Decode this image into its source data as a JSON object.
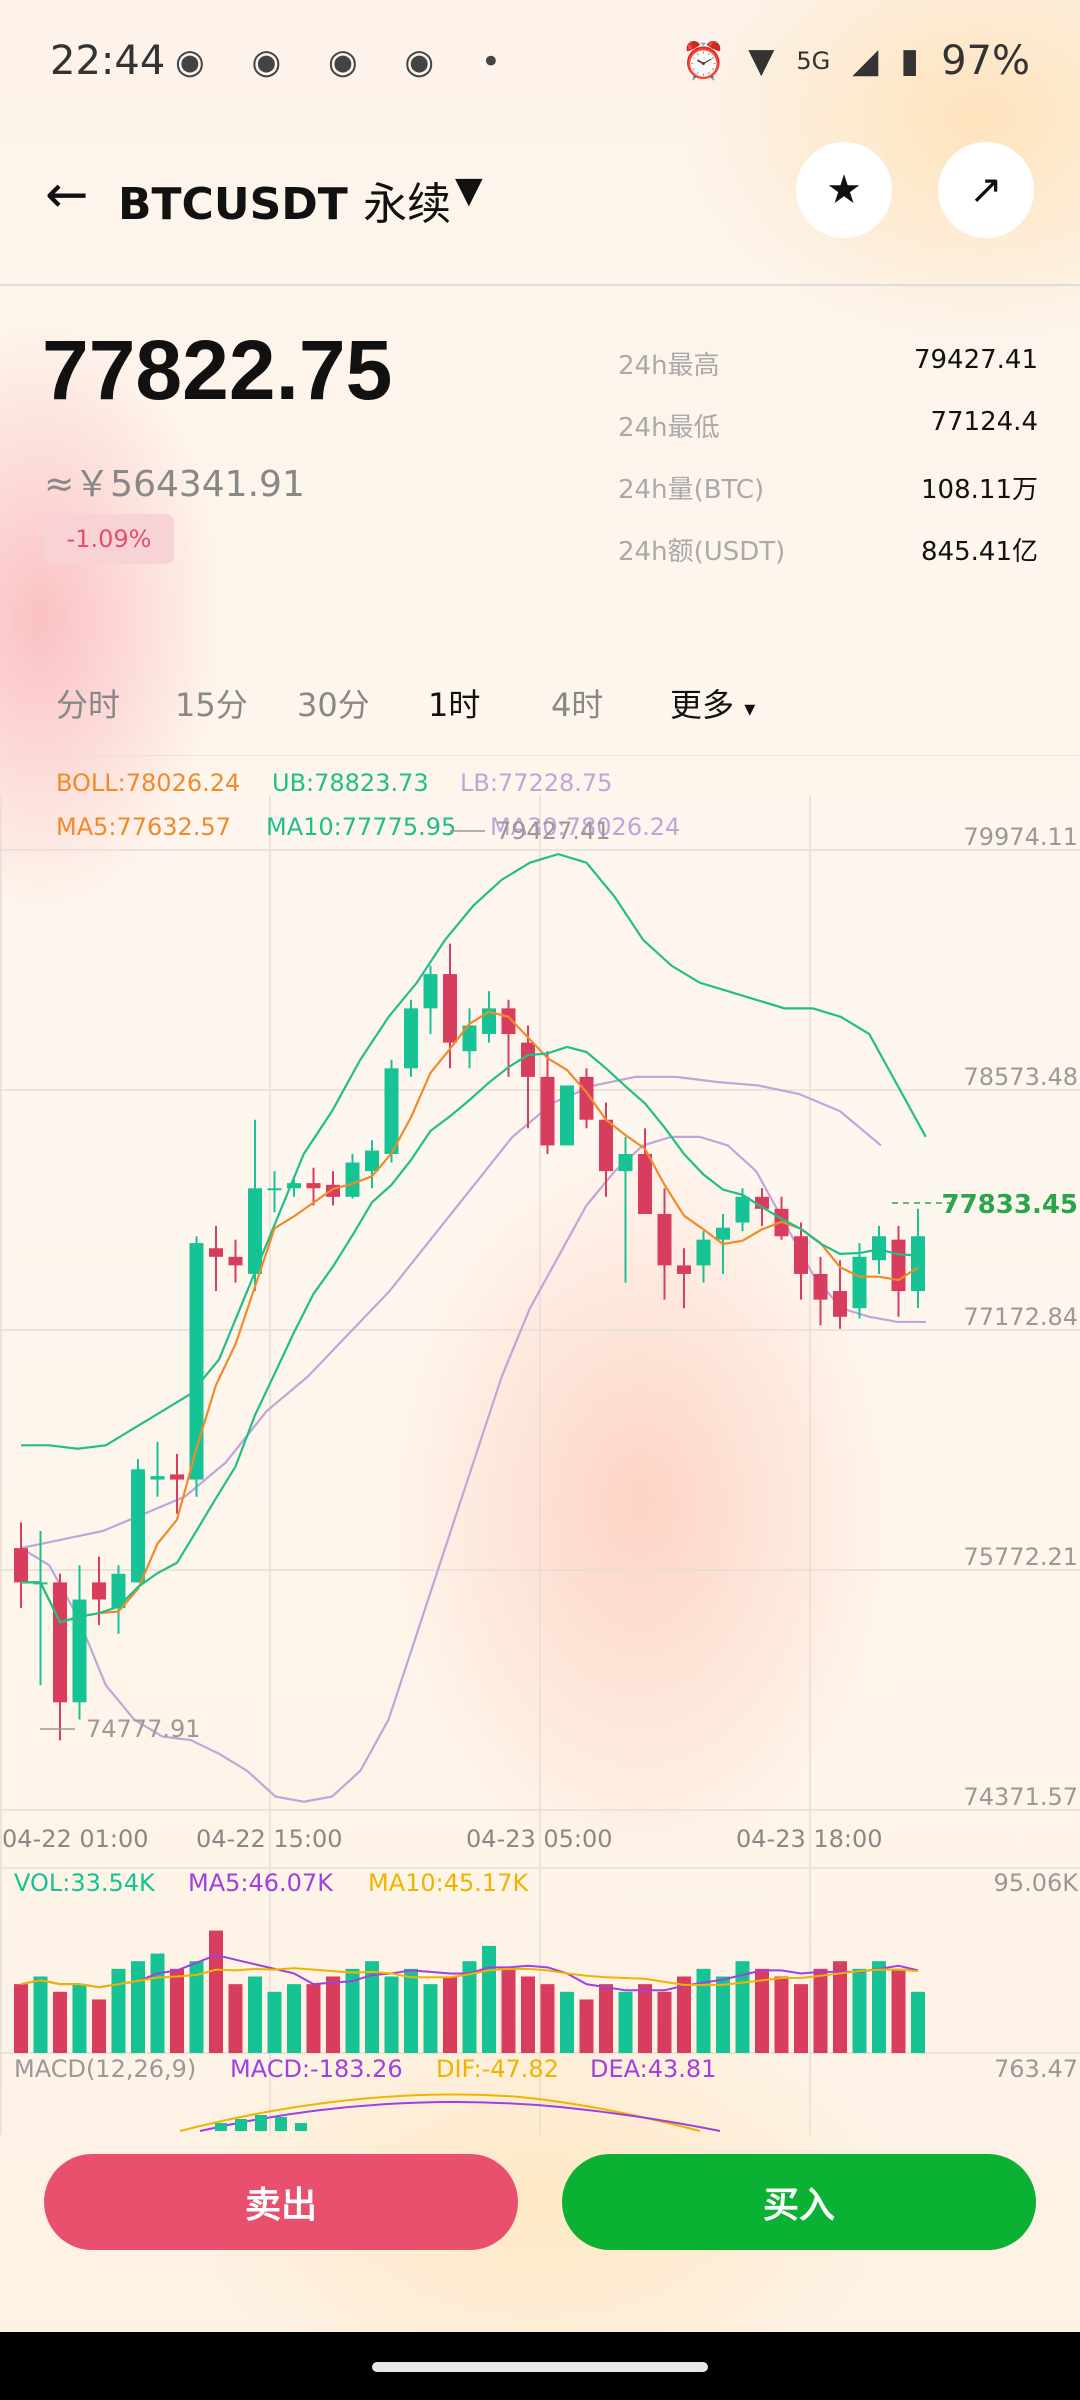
{
  "status": {
    "time": "22:44",
    "network": "5G",
    "battery": "97%",
    "notification_icons": "weibo-icon x4, dot"
  },
  "header": {
    "back": "←",
    "symbol": "BTCUSDT",
    "contract": "永续",
    "dropdown": "▼"
  },
  "ticker": {
    "price": "77822.75",
    "cny": "≈￥564341.91",
    "change": "-1.09%",
    "stats": [
      {
        "label": "24h最高",
        "value": "79427.41"
      },
      {
        "label": "24h最低",
        "value": "77124.4"
      },
      {
        "label": "24h量(BTC)",
        "value": "108.11万"
      },
      {
        "label": "24h额(USDT)",
        "value": "845.41亿"
      }
    ]
  },
  "tabs": [
    "分时",
    "15分",
    "30分",
    "1时",
    "4时",
    "更多"
  ],
  "active_tab": "1时",
  "colors": {
    "up": "#16c395",
    "down": "#d83d5e",
    "boll": "#f08a2a",
    "ub": "#1fbf8a",
    "lb": "#c0a5d8",
    "ma5": "#f08a2a",
    "ma10": "#1fbf8a",
    "ma30": "#c0a5d8",
    "vol": "#16c395",
    "vol_ma5": "#a040e0",
    "vol_ma10": "#f0b400"
  },
  "indicators": {
    "boll": "BOLL:78026.24",
    "ub": "UB:78823.73",
    "lb": "LB:77228.75",
    "ma5": "MA5:77632.57",
    "ma10": "MA10:77775.95",
    "ma30": "MA30:78026.24",
    "vol": "VOL:33.54K",
    "vol_ma5": "MA5:46.07K",
    "vol_ma10": "MA10:45.17K",
    "macd_title": "MACD(12,26,9)",
    "macd": "MACD:-183.26",
    "dif": "DIF:-47.82",
    "dea": "DEA:43.81"
  },
  "chart_data": {
    "type": "candlestick",
    "y_ticks": [
      "79974.11",
      "78573.48",
      "77172.84",
      "75772.21",
      "74371.57"
    ],
    "y_range": [
      74371.57,
      79974.11
    ],
    "x_ticks": [
      "04-22 01:00",
      "04-22 15:00",
      "04-23 05:00",
      "04-23 18:00"
    ],
    "current_price_label": "77833.45",
    "high_marker": "79427.41",
    "low_marker": "74777.91",
    "vol_max": "95.06K",
    "macd_value": "763.47",
    "candles": [
      {
        "o": 75900,
        "h": 76050,
        "l": 75550,
        "c": 75700
      },
      {
        "o": 75700,
        "h": 76000,
        "l": 75100,
        "c": 75700
      },
      {
        "o": 75700,
        "h": 75750,
        "l": 74777.91,
        "c": 75000
      },
      {
        "o": 75000,
        "h": 75800,
        "l": 74900,
        "c": 75600
      },
      {
        "o": 75700,
        "h": 75850,
        "l": 75450,
        "c": 75600
      },
      {
        "o": 75550,
        "h": 75800,
        "l": 75400,
        "c": 75750
      },
      {
        "o": 75700,
        "h": 76420,
        "l": 75700,
        "c": 76360
      },
      {
        "o": 76300,
        "h": 76520,
        "l": 76200,
        "c": 76320
      },
      {
        "o": 76330,
        "h": 76450,
        "l": 76100,
        "c": 76300
      },
      {
        "o": 76300,
        "h": 77720,
        "l": 76200,
        "c": 77680
      },
      {
        "o": 77650,
        "h": 77780,
        "l": 77400,
        "c": 77600
      },
      {
        "o": 77600,
        "h": 77700,
        "l": 77450,
        "c": 77550
      },
      {
        "o": 77500,
        "h": 78400,
        "l": 77400,
        "c": 78000
      },
      {
        "o": 78000,
        "h": 78100,
        "l": 77860,
        "c": 78000
      },
      {
        "o": 78000,
        "h": 78050,
        "l": 77950,
        "c": 78030
      },
      {
        "o": 78030,
        "h": 78120,
        "l": 77900,
        "c": 78000
      },
      {
        "o": 78020,
        "h": 78100,
        "l": 77900,
        "c": 77950
      },
      {
        "o": 77950,
        "h": 78200,
        "l": 77940,
        "c": 78150
      },
      {
        "o": 78100,
        "h": 78280,
        "l": 78000,
        "c": 78220
      },
      {
        "o": 78200,
        "h": 78750,
        "l": 78150,
        "c": 78700
      },
      {
        "o": 78700,
        "h": 79100,
        "l": 78650,
        "c": 79050
      },
      {
        "o": 79050,
        "h": 79300,
        "l": 78900,
        "c": 79250
      },
      {
        "o": 79250,
        "h": 79427.41,
        "l": 78700,
        "c": 78850
      },
      {
        "o": 78800,
        "h": 79050,
        "l": 78700,
        "c": 78950
      },
      {
        "o": 78900,
        "h": 79150,
        "l": 78850,
        "c": 79050
      },
      {
        "o": 79050,
        "h": 79100,
        "l": 78650,
        "c": 78900
      },
      {
        "o": 78850,
        "h": 78950,
        "l": 78350,
        "c": 78650
      },
      {
        "o": 78650,
        "h": 78800,
        "l": 78200,
        "c": 78250
      },
      {
        "o": 78250,
        "h": 78550,
        "l": 78250,
        "c": 78600
      },
      {
        "o": 78650,
        "h": 78700,
        "l": 78350,
        "c": 78400
      },
      {
        "o": 78400,
        "h": 78500,
        "l": 77950,
        "c": 78100
      },
      {
        "o": 78100,
        "h": 78300,
        "l": 77450,
        "c": 78200
      },
      {
        "o": 78200,
        "h": 78350,
        "l": 77850,
        "c": 77850
      },
      {
        "o": 77850,
        "h": 78000,
        "l": 77350,
        "c": 77550
      },
      {
        "o": 77550,
        "h": 77650,
        "l": 77300,
        "c": 77500
      },
      {
        "o": 77550,
        "h": 77750,
        "l": 77450,
        "c": 77700
      },
      {
        "o": 77700,
        "h": 77850,
        "l": 77500,
        "c": 77770
      },
      {
        "o": 77800,
        "h": 78000,
        "l": 77750,
        "c": 77950
      },
      {
        "o": 77950,
        "h": 78000,
        "l": 77780,
        "c": 77880
      },
      {
        "o": 77880,
        "h": 77950,
        "l": 77700,
        "c": 77720
      },
      {
        "o": 77720,
        "h": 77800,
        "l": 77350,
        "c": 77500
      },
      {
        "o": 77500,
        "h": 77600,
        "l": 77200,
        "c": 77350
      },
      {
        "o": 77400,
        "h": 77580,
        "l": 77180,
        "c": 77250
      },
      {
        "o": 77300,
        "h": 77680,
        "l": 77240,
        "c": 77600
      },
      {
        "o": 77580,
        "h": 77780,
        "l": 77500,
        "c": 77720
      },
      {
        "o": 77700,
        "h": 77780,
        "l": 77250,
        "c": 77400
      },
      {
        "o": 77400,
        "h": 77880,
        "l": 77300,
        "c": 77720
      }
    ],
    "ub_line": [
      76500,
      76500,
      76480,
      76500,
      76600,
      76700,
      76800,
      77000,
      77400,
      77800,
      78200,
      78450,
      78750,
      79000,
      79200,
      79450,
      79650,
      79800,
      79900,
      79950,
      79900,
      79700,
      79450,
      79300,
      79200,
      79150,
      79100,
      79050,
      79050,
      79000,
      78900,
      78600,
      78300
    ],
    "lb_line": [
      75900,
      75800,
      75500,
      75100,
      74900,
      74800,
      74780,
      74700,
      74600,
      74450,
      74420,
      74450,
      74600,
      74900,
      75400,
      75900,
      76400,
      76900,
      77300,
      77600,
      77900,
      78100,
      78250,
      78300,
      78300,
      78250,
      78100,
      77800,
      77500,
      77300,
      77250,
      77220,
      77220
    ],
    "ma30_line": [
      75900,
      75950,
      76000,
      76100,
      76200,
      76400,
      76700,
      76900,
      77150,
      77400,
      77700,
      78000,
      78300,
      78500,
      78600,
      78650,
      78650,
      78620,
      78600,
      78550,
      78450,
      78250
    ],
    "vol_bars": [
      0.45,
      0.5,
      0.4,
      0.45,
      0.35,
      0.55,
      0.6,
      0.65,
      0.55,
      0.6,
      0.8,
      0.45,
      0.5,
      0.4,
      0.45,
      0.45,
      0.5,
      0.55,
      0.6,
      0.5,
      0.55,
      0.45,
      0.5,
      0.6,
      0.7,
      0.55,
      0.5,
      0.45,
      0.4,
      0.35,
      0.45,
      0.4,
      0.45,
      0.4,
      0.5,
      0.55,
      0.5,
      0.6,
      0.55,
      0.5,
      0.45,
      0.55,
      0.6,
      0.55,
      0.6,
      0.55,
      0.4
    ]
  },
  "actions": {
    "sell": "卖出",
    "buy": "买入"
  }
}
